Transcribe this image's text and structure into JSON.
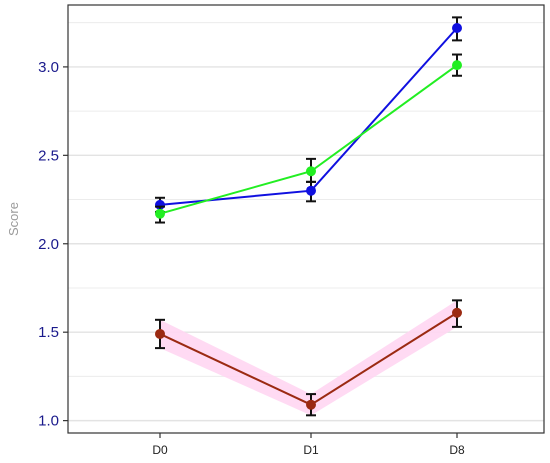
{
  "chart_data": {
    "type": "line",
    "title": "",
    "xlabel": "",
    "ylabel": "Score",
    "categories": [
      "D0",
      "D1",
      "D8"
    ],
    "ylim": [
      0.93,
      3.35
    ],
    "yticks": [
      1.0,
      1.5,
      2.0,
      2.5,
      3.0
    ],
    "ytick_labels": [
      "1.0",
      "1.5",
      "2.0",
      "2.5",
      "3.0"
    ],
    "grid": true,
    "legend": "none",
    "series": [
      {
        "color": "#1010e0",
        "values": [
          2.22,
          2.3,
          3.22
        ],
        "error_low": [
          2.18,
          2.24,
          3.15
        ],
        "error_high": [
          2.26,
          2.35,
          3.28
        ]
      },
      {
        "color": "#22ee22",
        "values": [
          2.17,
          2.41,
          3.01
        ],
        "error_low": [
          2.12,
          2.35,
          2.95
        ],
        "error_high": [
          2.21,
          2.48,
          3.07
        ]
      },
      {
        "color": "#9b2a12",
        "band_color": "#ffd6f2",
        "values": [
          1.49,
          1.09,
          1.61
        ],
        "error_low": [
          1.41,
          1.03,
          1.53
        ],
        "error_high": [
          1.57,
          1.15,
          1.68
        ]
      }
    ]
  }
}
